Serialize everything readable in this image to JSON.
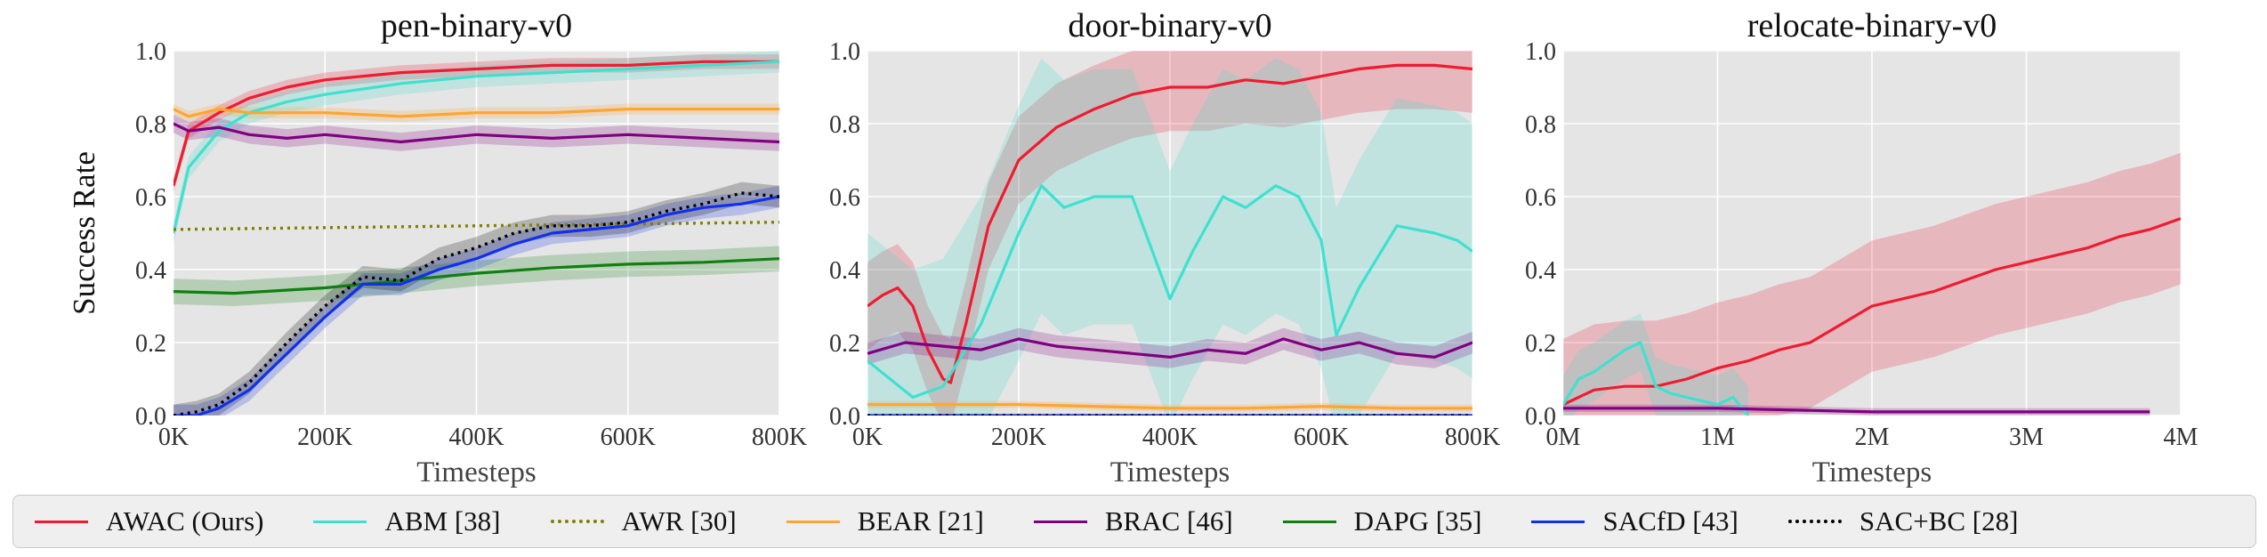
{
  "chart_data": [
    {
      "type": "line",
      "title": "pen-binary-v0",
      "xlabel": "Timesteps",
      "ylabel": "Success Rate",
      "xlim": [
        0,
        800000
      ],
      "ylim": [
        0,
        1.0
      ],
      "xticks": [
        0,
        200000,
        400000,
        600000,
        800000
      ],
      "xticklabels": [
        "0K",
        "200K",
        "400K",
        "600K",
        "800K"
      ],
      "yticks": [
        0,
        0.2,
        0.4,
        0.6,
        0.8,
        1.0
      ],
      "yticklabels": [
        "0.0",
        "0.2",
        "0.4",
        "0.6",
        "0.8",
        "1.0"
      ],
      "grid": true,
      "series": [
        {
          "name": "AWAC (Ours)",
          "x": [
            0,
            20000,
            60000,
            100000,
            150000,
            200000,
            300000,
            400000,
            500000,
            600000,
            700000,
            800000
          ],
          "y": [
            0.63,
            0.78,
            0.83,
            0.87,
            0.9,
            0.92,
            0.94,
            0.95,
            0.96,
            0.96,
            0.97,
            0.97
          ],
          "band": 0.02
        },
        {
          "name": "ABM [38]",
          "x": [
            0,
            20000,
            60000,
            100000,
            150000,
            200000,
            300000,
            400000,
            500000,
            600000,
            700000,
            800000
          ],
          "y": [
            0.5,
            0.68,
            0.78,
            0.83,
            0.86,
            0.88,
            0.91,
            0.93,
            0.94,
            0.95,
            0.96,
            0.97
          ],
          "band": 0.03
        },
        {
          "name": "AWR [30]",
          "x": [
            0,
            800000
          ],
          "y": [
            0.51,
            0.53
          ],
          "band": 0
        },
        {
          "name": "BEAR [21]",
          "x": [
            0,
            20000,
            60000,
            100000,
            200000,
            300000,
            400000,
            500000,
            600000,
            700000,
            800000
          ],
          "y": [
            0.84,
            0.82,
            0.84,
            0.83,
            0.83,
            0.82,
            0.83,
            0.83,
            0.84,
            0.84,
            0.84
          ],
          "band": 0.015
        },
        {
          "name": "BRAC [46]",
          "x": [
            0,
            20000,
            60000,
            100000,
            150000,
            200000,
            300000,
            400000,
            500000,
            600000,
            700000,
            800000
          ],
          "y": [
            0.8,
            0.78,
            0.79,
            0.77,
            0.76,
            0.77,
            0.75,
            0.77,
            0.76,
            0.77,
            0.76,
            0.75
          ],
          "band": 0.025
        },
        {
          "name": "DAPG [35]",
          "x": [
            0,
            80000,
            200000,
            300000,
            400000,
            500000,
            600000,
            700000,
            800000
          ],
          "y": [
            0.34,
            0.335,
            0.35,
            0.37,
            0.39,
            0.405,
            0.415,
            0.42,
            0.43
          ],
          "band": 0.035
        },
        {
          "name": "SACfD [43]",
          "x": [
            0,
            30000,
            60000,
            100000,
            150000,
            200000,
            250000,
            300000,
            350000,
            400000,
            450000,
            500000,
            550000,
            600000,
            650000,
            700000,
            750000,
            800000
          ],
          "y": [
            0.0,
            0.0,
            0.02,
            0.07,
            0.17,
            0.27,
            0.36,
            0.36,
            0.4,
            0.43,
            0.47,
            0.5,
            0.51,
            0.52,
            0.55,
            0.57,
            0.58,
            0.6
          ],
          "band": 0.03
        },
        {
          "name": "SAC+BC [28]",
          "x": [
            0,
            30000,
            60000,
            100000,
            150000,
            200000,
            250000,
            300000,
            350000,
            400000,
            450000,
            500000,
            550000,
            600000,
            650000,
            700000,
            750000,
            800000
          ],
          "y": [
            0.0,
            0.01,
            0.03,
            0.09,
            0.2,
            0.3,
            0.38,
            0.37,
            0.43,
            0.46,
            0.5,
            0.52,
            0.52,
            0.53,
            0.56,
            0.58,
            0.61,
            0.6
          ],
          "band": 0.03
        }
      ]
    },
    {
      "type": "line",
      "title": "door-binary-v0",
      "xlabel": "Timesteps",
      "ylabel": "",
      "xlim": [
        0,
        800000
      ],
      "ylim": [
        0,
        1.0
      ],
      "xticks": [
        0,
        200000,
        400000,
        600000,
        800000
      ],
      "xticklabels": [
        "0K",
        "200K",
        "400K",
        "600K",
        "800K"
      ],
      "yticks": [
        0,
        0.2,
        0.4,
        0.6,
        0.8,
        1.0
      ],
      "yticklabels": [
        "0.0",
        "0.2",
        "0.4",
        "0.6",
        "0.8",
        "1.0"
      ],
      "grid": true,
      "series": [
        {
          "name": "AWAC (Ours)",
          "x": [
            0,
            20000,
            40000,
            60000,
            80000,
            100000,
            110000,
            130000,
            160000,
            200000,
            250000,
            300000,
            350000,
            400000,
            450000,
            500000,
            550000,
            600000,
            650000,
            700000,
            750000,
            800000
          ],
          "y": [
            0.3,
            0.33,
            0.35,
            0.3,
            0.18,
            0.1,
            0.09,
            0.25,
            0.52,
            0.7,
            0.79,
            0.84,
            0.88,
            0.9,
            0.9,
            0.92,
            0.91,
            0.93,
            0.95,
            0.96,
            0.96,
            0.95
          ],
          "band": 0.12
        },
        {
          "name": "ABM [38]",
          "x": [
            0,
            30000,
            60000,
            100000,
            150000,
            200000,
            230000,
            260000,
            300000,
            350000,
            400000,
            430000,
            470000,
            500000,
            540000,
            570000,
            600000,
            620000,
            650000,
            700000,
            750000,
            780000,
            800000
          ],
          "y": [
            0.15,
            0.1,
            0.05,
            0.08,
            0.25,
            0.5,
            0.63,
            0.57,
            0.6,
            0.6,
            0.32,
            0.45,
            0.6,
            0.57,
            0.63,
            0.6,
            0.48,
            0.22,
            0.35,
            0.52,
            0.5,
            0.48,
            0.45
          ],
          "band": 0.35
        },
        {
          "name": "BEAR [21]",
          "x": [
            0,
            100000,
            200000,
            300000,
            400000,
            500000,
            600000,
            700000,
            800000
          ],
          "y": [
            0.03,
            0.03,
            0.03,
            0.025,
            0.02,
            0.02,
            0.025,
            0.02,
            0.02
          ],
          "band": 0.01
        },
        {
          "name": "BRAC [46]",
          "x": [
            0,
            50000,
            100000,
            150000,
            200000,
            250000,
            300000,
            350000,
            400000,
            450000,
            500000,
            550000,
            600000,
            650000,
            700000,
            750000,
            800000
          ],
          "y": [
            0.17,
            0.2,
            0.19,
            0.18,
            0.21,
            0.19,
            0.18,
            0.17,
            0.16,
            0.18,
            0.17,
            0.21,
            0.18,
            0.2,
            0.17,
            0.16,
            0.2
          ],
          "band": 0.03
        },
        {
          "name": "SACfD [43]",
          "x": [
            0,
            800000
          ],
          "y": [
            0.0,
            0.0
          ],
          "band": 0
        },
        {
          "name": "SAC+BC [28]",
          "x": [
            0,
            800000
          ],
          "y": [
            0.0,
            0.0
          ],
          "band": 0
        }
      ]
    },
    {
      "type": "line",
      "title": "relocate-binary-v0",
      "xlabel": "Timesteps",
      "ylabel": "",
      "xlim": [
        0,
        4000000
      ],
      "ylim": [
        0,
        1.0
      ],
      "xticks": [
        0,
        1000000,
        2000000,
        3000000,
        4000000
      ],
      "xticklabels": [
        "0M",
        "1M",
        "2M",
        "3M",
        "4M"
      ],
      "yticks": [
        0,
        0.2,
        0.4,
        0.6,
        0.8,
        1.0
      ],
      "yticklabels": [
        "0.0",
        "0.2",
        "0.4",
        "0.6",
        "0.8",
        "1.0"
      ],
      "grid": true,
      "series": [
        {
          "name": "AWAC (Ours)",
          "x": [
            0,
            200000,
            400000,
            600000,
            800000,
            1000000,
            1200000,
            1400000,
            1600000,
            1800000,
            2000000,
            2200000,
            2400000,
            2600000,
            2800000,
            3000000,
            3200000,
            3400000,
            3600000,
            3800000,
            4000000
          ],
          "y": [
            0.03,
            0.07,
            0.08,
            0.08,
            0.1,
            0.13,
            0.15,
            0.18,
            0.2,
            0.25,
            0.3,
            0.32,
            0.34,
            0.37,
            0.4,
            0.42,
            0.44,
            0.46,
            0.49,
            0.51,
            0.54
          ],
          "band": 0.18
        },
        {
          "name": "ABM [38]",
          "x": [
            0,
            100000,
            200000,
            300000,
            400000,
            500000,
            600000,
            700000,
            800000,
            900000,
            1000000,
            1100000,
            1200000
          ],
          "y": [
            0.03,
            0.1,
            0.12,
            0.15,
            0.18,
            0.2,
            0.08,
            0.06,
            0.05,
            0.04,
            0.03,
            0.05,
            0.0
          ],
          "band": 0.08
        },
        {
          "name": "BRAC [46]",
          "x": [
            0,
            1000000,
            2000000,
            3000000,
            3800000
          ],
          "y": [
            0.02,
            0.02,
            0.01,
            0.01,
            0.01
          ],
          "band": 0.01
        }
      ]
    }
  ],
  "legend": [
    {
      "label": "AWAC (Ours)",
      "color": "#ee1c30",
      "dash": "solid"
    },
    {
      "label": "ABM [38]",
      "color": "#40e0d0",
      "dash": "solid"
    },
    {
      "label": "AWR [30]",
      "color": "#808000",
      "dash": "dotted"
    },
    {
      "label": "BEAR [21]",
      "color": "#ffa530",
      "dash": "solid"
    },
    {
      "label": "BRAC [46]",
      "color": "#800080",
      "dash": "solid"
    },
    {
      "label": "DAPG [35]",
      "color": "#108010",
      "dash": "solid"
    },
    {
      "label": "SACfD [43]",
      "color": "#1030ee",
      "dash": "solid"
    },
    {
      "label": "SAC+BC [28]",
      "color": "#000000",
      "dash": "dotted"
    }
  ]
}
